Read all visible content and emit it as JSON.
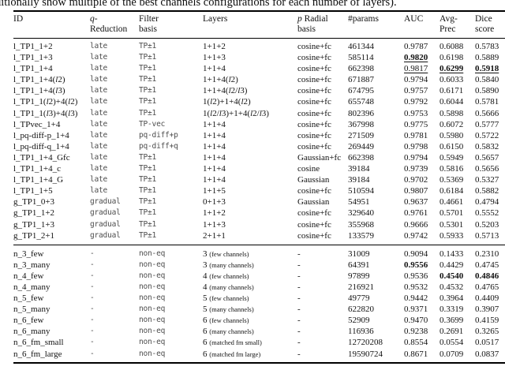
{
  "caption": "ditionally show multiple of the best channels configurations for each number of layers).",
  "table": {
    "headers": {
      "id": "ID",
      "q_reduction": "<i>q</i>-<br>Reduction",
      "filter_basis": "Filter<br>basis",
      "layers": "Layers",
      "radial_basis": "<i>p</i> Radial<br>basis",
      "params": "#params",
      "auc": "AUC",
      "avg_prec": "Avg-<br>Prec",
      "dice": "Dice<br>score"
    },
    "sections": [
      {
        "name": "equivariant-models",
        "rows": [
          {
            "id": "l_TP1_1+2",
            "q": "late",
            "filter": "TP±1",
            "layers": "1+1+2",
            "radial": "cosine+fc",
            "params": "461344",
            "auc": {
              "t": "0.9787"
            },
            "ap": {
              "t": "0.6088"
            },
            "dice": {
              "t": "0.5783"
            }
          },
          {
            "id": "l_TP1_1+3",
            "q": "late",
            "filter": "TP±1",
            "layers": "1+1+3",
            "radial": "cosine+fc",
            "params": "585114",
            "auc": {
              "t": "0.9820",
              "b": true,
              "u": true
            },
            "ap": {
              "t": "0.6198"
            },
            "dice": {
              "t": "0.5889"
            }
          },
          {
            "id": "l_TP1_1+4",
            "q": "late",
            "filter": "TP±1",
            "layers": "1+1+4",
            "radial": "cosine+fc",
            "params": "662398",
            "auc": {
              "t": "0.9817",
              "u": true
            },
            "ap": {
              "t": "0.6299",
              "b": true,
              "u": true
            },
            "dice": {
              "t": "0.5918",
              "b": true,
              "u": true
            }
          },
          {
            "id": "l_TP1_1+4(<i>l</i>2)",
            "q": "late",
            "filter": "TP±1",
            "layers": "1+1+4(<i>l</i>2)",
            "radial": "cosine+fc",
            "params": "671887",
            "auc": {
              "t": "0.9794"
            },
            "ap": {
              "t": "0.6033"
            },
            "dice": {
              "t": "0.5840"
            }
          },
          {
            "id": "l_TP1_1+4(<i>l</i>3)",
            "q": "late",
            "filter": "TP±1",
            "layers": "1+1+4(<i>l</i>2/<i>l</i>3)",
            "radial": "cosine+fc",
            "params": "674795",
            "auc": {
              "t": "0.9757"
            },
            "ap": {
              "t": "0.6171"
            },
            "dice": {
              "t": "0.5890"
            }
          },
          {
            "id": "l_TP1_1(<i>l</i>2)+4(<i>l</i>2)",
            "q": "late",
            "filter": "TP±1",
            "layers": "1(<i>l</i>2)+1+4(<i>l</i>2)",
            "radial": "cosine+fc",
            "params": "655748",
            "auc": {
              "t": "0.9792"
            },
            "ap": {
              "t": "0.6044"
            },
            "dice": {
              "t": "0.5781"
            }
          },
          {
            "id": "l_TP1_1(<i>l</i>3)+4(<i>l</i>3)",
            "q": "late",
            "filter": "TP±1",
            "layers": "1(<i>l</i>2/<i>l</i>3)+1+4(<i>l</i>2/<i>l</i>3)",
            "radial": "cosine+fc",
            "params": "802396",
            "auc": {
              "t": "0.9753"
            },
            "ap": {
              "t": "0.5898"
            },
            "dice": {
              "t": "0.5666"
            }
          },
          {
            "id": "l_TPvec_1+4",
            "q": "late",
            "filter": "TP-vec",
            "layers": "1+1+4",
            "radial": "cosine+fc",
            "params": "367998",
            "auc": {
              "t": "0.9775"
            },
            "ap": {
              "t": "0.6072"
            },
            "dice": {
              "t": "0.5777"
            }
          },
          {
            "id": "l_pq-diff-p_1+4",
            "q": "late",
            "filter": "pq-diff+p",
            "layers": "1+1+4",
            "radial": "cosine+fc",
            "params": "271509",
            "auc": {
              "t": "0.9781"
            },
            "ap": {
              "t": "0.5980"
            },
            "dice": {
              "t": "0.5722"
            }
          },
          {
            "id": "l_pq-diff-q_1+4",
            "q": "late",
            "filter": "pq-diff+q",
            "layers": "1+1+4",
            "radial": "cosine+fc",
            "params": "269449",
            "auc": {
              "t": "0.9798"
            },
            "ap": {
              "t": "0.6150"
            },
            "dice": {
              "t": "0.5832"
            }
          },
          {
            "id": "l_TP1_1+4_Gfc",
            "q": "late",
            "filter": "TP±1",
            "layers": "1+1+4",
            "radial": "Gaussian+fc",
            "params": "662398",
            "auc": {
              "t": "0.9794"
            },
            "ap": {
              "t": "0.5949"
            },
            "dice": {
              "t": "0.5657"
            }
          },
          {
            "id": "l_TP1_1+4_c",
            "q": "late",
            "filter": "TP±1",
            "layers": "1+1+4",
            "radial": "cosine",
            "params": "39184",
            "auc": {
              "t": "0.9739"
            },
            "ap": {
              "t": "0.5816"
            },
            "dice": {
              "t": "0.5656"
            }
          },
          {
            "id": "l_TP1_1+4_G",
            "q": "late",
            "filter": "TP±1",
            "layers": "1+1+4",
            "radial": "Gaussian",
            "params": "39184",
            "auc": {
              "t": "0.9702"
            },
            "ap": {
              "t": "0.5369"
            },
            "dice": {
              "t": "0.5327"
            }
          },
          {
            "id": "l_TP1_1+5",
            "q": "late",
            "filter": "TP±1",
            "layers": "1+1+5",
            "radial": "cosine+fc",
            "params": "510594",
            "auc": {
              "t": "0.9807"
            },
            "ap": {
              "t": "0.6184"
            },
            "dice": {
              "t": "0.5882"
            }
          },
          {
            "id": "g_TP1_0+3",
            "q": "gradual",
            "filter": "TP±1",
            "layers": "0+1+3",
            "radial": "Gaussian",
            "params": "54951",
            "auc": {
              "t": "0.9637"
            },
            "ap": {
              "t": "0.4661"
            },
            "dice": {
              "t": "0.4794"
            }
          },
          {
            "id": "g_TP1_1+2",
            "q": "gradual",
            "filter": "TP±1",
            "layers": "1+1+2",
            "radial": "cosine+fc",
            "params": "329640",
            "auc": {
              "t": "0.9761"
            },
            "ap": {
              "t": "0.5701"
            },
            "dice": {
              "t": "0.5552"
            }
          },
          {
            "id": "g_TP1_1+3",
            "q": "gradual",
            "filter": "TP±1",
            "layers": "1+1+3",
            "radial": "cosine+fc",
            "params": "355968",
            "auc": {
              "t": "0.9666"
            },
            "ap": {
              "t": "0.5301"
            },
            "dice": {
              "t": "0.5203"
            }
          },
          {
            "id": "g_TP1_2+1",
            "q": "gradual",
            "filter": "TP±1",
            "layers": "2+1+1",
            "radial": "cosine+fc",
            "params": "133579",
            "auc": {
              "t": "0.9742"
            },
            "ap": {
              "t": "0.5933"
            },
            "dice": {
              "t": "0.5713"
            }
          }
        ]
      },
      {
        "name": "non-equivariant-models",
        "rows": [
          {
            "id": "n_3_few",
            "q": "-",
            "filter": "non-eq",
            "layers": "3 <span class=\"small\">(few channels)</span>",
            "radial": "-",
            "params": "31009",
            "auc": {
              "t": "0.9094"
            },
            "ap": {
              "t": "0.1433"
            },
            "dice": {
              "t": "0.2310"
            }
          },
          {
            "id": "n_3_many",
            "q": "-",
            "filter": "non-eq",
            "layers": "3 <span class=\"small\">(many channels)</span>",
            "radial": "-",
            "params": "64391",
            "auc": {
              "t": "0.9556",
              "b": true
            },
            "ap": {
              "t": "0.4429"
            },
            "dice": {
              "t": "0.4745"
            }
          },
          {
            "id": "n_4_few",
            "q": "-",
            "filter": "non-eq",
            "layers": "4 <span class=\"small\">(few channels)</span>",
            "radial": "-",
            "params": "97899",
            "auc": {
              "t": "0.9536"
            },
            "ap": {
              "t": "0.4540",
              "b": true
            },
            "dice": {
              "t": "0.4846",
              "b": true
            }
          },
          {
            "id": "n_4_many",
            "q": "-",
            "filter": "non-eq",
            "layers": "4 <span class=\"small\">(many channels)</span>",
            "radial": "-",
            "params": "216921",
            "auc": {
              "t": "0.9532"
            },
            "ap": {
              "t": "0.4532"
            },
            "dice": {
              "t": "0.4765"
            }
          },
          {
            "id": "n_5_few",
            "q": "-",
            "filter": "non-eq",
            "layers": "5 <span class=\"small\">(few channels)</span>",
            "radial": "-",
            "params": "49779",
            "auc": {
              "t": "0.9442"
            },
            "ap": {
              "t": "0.3964"
            },
            "dice": {
              "t": "0.4409"
            }
          },
          {
            "id": "n_5_many",
            "q": "-",
            "filter": "non-eq",
            "layers": "5 <span class=\"small\">(many channels)</span>",
            "radial": "-",
            "params": "622820",
            "auc": {
              "t": "0.9371"
            },
            "ap": {
              "t": "0.3319"
            },
            "dice": {
              "t": "0.3907"
            }
          },
          {
            "id": "n_6_few",
            "q": "-",
            "filter": "non-eq",
            "layers": "6 <span class=\"small\">(few channels)</span>",
            "radial": "-",
            "params": "52909",
            "auc": {
              "t": "0.9470"
            },
            "ap": {
              "t": "0.3699"
            },
            "dice": {
              "t": "0.4159"
            }
          },
          {
            "id": "n_6_many",
            "q": "-",
            "filter": "non-eq",
            "layers": "6 <span class=\"small\">(many channels)</span>",
            "radial": "-",
            "params": "116936",
            "auc": {
              "t": "0.9238"
            },
            "ap": {
              "t": "0.2691"
            },
            "dice": {
              "t": "0.3265"
            }
          },
          {
            "id": "n_6_fm_small",
            "q": "-",
            "filter": "non-eq",
            "layers": "6 <span class=\"small\">(matched fm small)</span>",
            "radial": "-",
            "params": "12720208",
            "auc": {
              "t": "0.8554"
            },
            "ap": {
              "t": "0.0554"
            },
            "dice": {
              "t": "0.0517"
            }
          },
          {
            "id": "n_6_fm_large",
            "q": "-",
            "filter": "non-eq",
            "layers": "6 <span class=\"small\">(matched fm large)</span>",
            "radial": "-",
            "params": "19590724",
            "auc": {
              "t": "0.8671"
            },
            "ap": {
              "t": "0.0709"
            },
            "dice": {
              "t": "0.0837"
            }
          }
        ]
      }
    ]
  }
}
